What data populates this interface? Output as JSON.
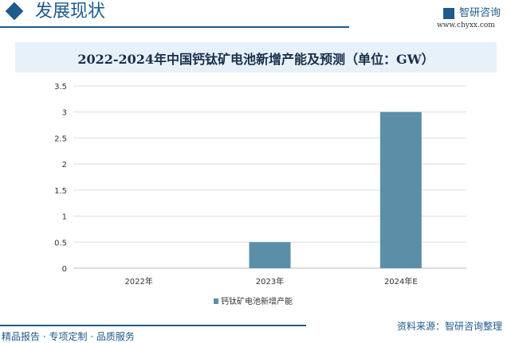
{
  "header": {
    "section_title": "发展现状",
    "brand": "智研咨询",
    "url": "www.chyxx.com"
  },
  "chart_data": {
    "type": "bar",
    "title": "2022-2024年中国钙钛矿电池新增产能及预测（单位：GW）",
    "categories": [
      "2022年",
      "2023年",
      "2024年E"
    ],
    "series": [
      {
        "name": "钙钛矿电池新增产能",
        "values": [
          0,
          0.5,
          3
        ],
        "color": "#5b8fa8"
      }
    ],
    "ylim": [
      0,
      3.5
    ],
    "yticks": [
      "0",
      "0.5",
      "1",
      "1.5",
      "2",
      "2.5",
      "3",
      "3.5"
    ],
    "grid": true,
    "legend": "bottom"
  },
  "footer": {
    "left": "精品报告 · 专项定制 · 品质服务",
    "source": "资料来源：智研咨询整理"
  }
}
